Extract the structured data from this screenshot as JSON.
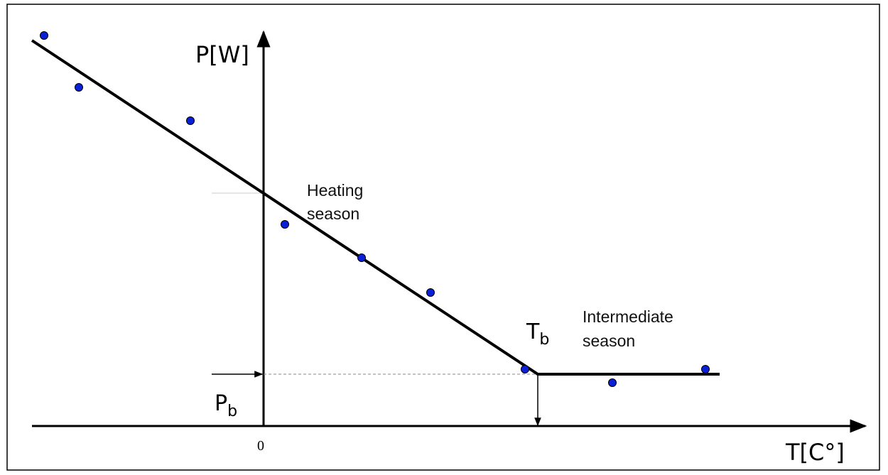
{
  "axes": {
    "y_label": "P[W]",
    "x_label": "T[C°]",
    "origin_label": "0"
  },
  "regions": [
    {
      "label_lines": [
        "Heating",
        "season"
      ]
    },
    {
      "label_lines": [
        "Intermediate",
        "season"
      ]
    }
  ],
  "markers": {
    "balance_temperature": {
      "base": "T",
      "sub": "b"
    },
    "base_load": {
      "base": "P",
      "sub": "b"
    }
  }
}
